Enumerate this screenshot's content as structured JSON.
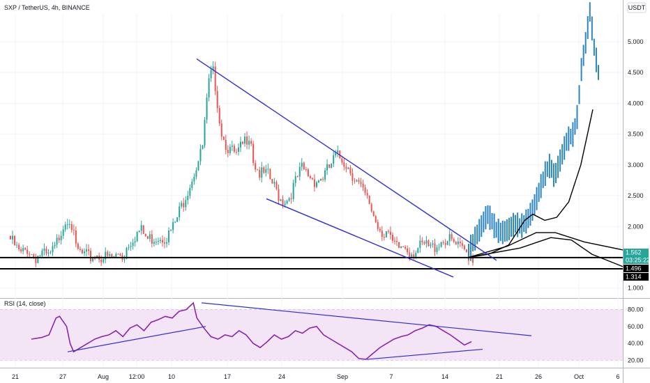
{
  "header": {
    "title": "SXP / TetherUS, 4h, BINANCE",
    "currency_badge": "USDT"
  },
  "rsi_header": {
    "title": "RSI (14, close)"
  },
  "colors": {
    "up": "#26a69a",
    "down": "#ef5350",
    "projection": "#2e86c1",
    "trendline": "#2f2fd6",
    "rsi_line": "#8e24aa",
    "rsi_band": "#f3e5f5",
    "ma": "#000000",
    "price_badge": "#26a69a",
    "level_badge": "#000000"
  },
  "price_labels": {
    "current": "1.562",
    "countdown": "03:25:22",
    "level1": "1.496",
    "level2": "1.314"
  },
  "chart_data": [
    {
      "type": "candlestick",
      "title": "SXP / TetherUS, 4h, BINANCE",
      "y_ticks": [
        1.0,
        1.5,
        2.0,
        2.5,
        3.0,
        3.5,
        4.0,
        4.5,
        5.0
      ],
      "y_tick_labels": [
        "1.000",
        "1.500",
        "2.000",
        "2.500",
        "3.000",
        "3.500",
        "4.000",
        "4.500",
        "5.000"
      ],
      "ylim": [
        0.85,
        5.45
      ],
      "x_ticks": [
        "21",
        "27",
        "Aug",
        "12:00",
        "10",
        "17",
        "24",
        "Sep",
        "7",
        "14",
        "21",
        "26",
        "Oct",
        "6"
      ],
      "grid": true,
      "path_points": [
        [
          0,
          1.85
        ],
        [
          3,
          1.6
        ],
        [
          5,
          1.7
        ],
        [
          7,
          1.55
        ],
        [
          9,
          1.62
        ],
        [
          11,
          1.55
        ],
        [
          13,
          1.7
        ],
        [
          15,
          2.05
        ],
        [
          17,
          2.25
        ],
        [
          18,
          2.05
        ],
        [
          19,
          1.7
        ],
        [
          21,
          1.6
        ],
        [
          23,
          1.55
        ],
        [
          25,
          1.6
        ],
        [
          28,
          1.55
        ],
        [
          30,
          1.55
        ],
        [
          32,
          1.62
        ],
        [
          33,
          1.55
        ],
        [
          34,
          1.75
        ],
        [
          36,
          1.9
        ],
        [
          38,
          2.0
        ],
        [
          40,
          1.85
        ],
        [
          43,
          1.9
        ],
        [
          46,
          1.9
        ],
        [
          48,
          2.1
        ],
        [
          50,
          2.4
        ],
        [
          52,
          2.7
        ],
        [
          54,
          3.0
        ],
        [
          56,
          3.3
        ],
        [
          57,
          3.9
        ],
        [
          58,
          4.4
        ],
        [
          59,
          4.6
        ],
        [
          60,
          4.3
        ],
        [
          61,
          3.8
        ],
        [
          62,
          3.5
        ],
        [
          64,
          3.3
        ],
        [
          66,
          3.2
        ],
        [
          68,
          3.4
        ],
        [
          70,
          3.6
        ],
        [
          71,
          3.1
        ],
        [
          73,
          2.9
        ],
        [
          75,
          2.9
        ],
        [
          77,
          2.7
        ],
        [
          79,
          2.5
        ],
        [
          81,
          2.5
        ],
        [
          83,
          2.75
        ],
        [
          85,
          3.0
        ],
        [
          87,
          2.9
        ],
        [
          89,
          2.8
        ],
        [
          91,
          2.85
        ],
        [
          93,
          3.0
        ],
        [
          95,
          3.2
        ],
        [
          97,
          3.15
        ],
        [
          99,
          3.0
        ],
        [
          101,
          2.8
        ],
        [
          103,
          2.6
        ],
        [
          105,
          2.4
        ],
        [
          107,
          2.1
        ],
        [
          109,
          1.95
        ],
        [
          110,
          2.0
        ],
        [
          111,
          1.8
        ],
        [
          113,
          1.7
        ],
        [
          115,
          1.75
        ],
        [
          117,
          1.65
        ],
        [
          119,
          1.7
        ],
        [
          121,
          1.75
        ],
        [
          123,
          1.7
        ],
        [
          125,
          1.8
        ],
        [
          127,
          1.85
        ],
        [
          129,
          1.8
        ],
        [
          131,
          1.7
        ],
        [
          133,
          1.65
        ],
        [
          135,
          1.55
        ]
      ],
      "path_x_range": [
        0,
        135
      ],
      "projection_points": [
        [
          0,
          1.6
        ],
        [
          3,
          1.8
        ],
        [
          6,
          2.0
        ],
        [
          9,
          2.2
        ],
        [
          11,
          2.1
        ],
        [
          13,
          1.95
        ],
        [
          16,
          1.9
        ],
        [
          19,
          1.95
        ],
        [
          22,
          2.05
        ],
        [
          25,
          2.0
        ],
        [
          28,
          2.1
        ],
        [
          31,
          2.3
        ],
        [
          34,
          2.6
        ],
        [
          37,
          2.9
        ],
        [
          39,
          3.0
        ],
        [
          41,
          2.8
        ],
        [
          44,
          3.1
        ],
        [
          47,
          3.4
        ],
        [
          50,
          3.5
        ],
        [
          52,
          3.8
        ],
        [
          53,
          4.2
        ],
        [
          54,
          4.6
        ],
        [
          56,
          5.0
        ],
        [
          58,
          5.5
        ],
        [
          60,
          4.9
        ],
        [
          62,
          4.5
        ]
      ],
      "projection_x_range": [
        0,
        62
      ],
      "moving_averages": [
        [
          [
            0,
            1.5
          ],
          [
            10,
            1.55
          ],
          [
            20,
            1.7
          ],
          [
            28,
            2.1
          ],
          [
            32,
            2.2
          ],
          [
            38,
            2.1
          ],
          [
            44,
            2.15
          ],
          [
            50,
            2.4
          ],
          [
            56,
            3.0
          ],
          [
            60,
            3.6
          ],
          [
            62,
            3.9
          ]
        ],
        [
          [
            0,
            1.5
          ],
          [
            20,
            1.68
          ],
          [
            35,
            1.9
          ],
          [
            45,
            1.9
          ],
          [
            60,
            1.75
          ],
          [
            80,
            1.62
          ]
        ],
        [
          [
            0,
            1.5
          ],
          [
            25,
            1.65
          ],
          [
            40,
            1.82
          ],
          [
            50,
            1.78
          ],
          [
            60,
            1.55
          ],
          [
            75,
            1.35
          ]
        ]
      ],
      "horizontal_levels": [
        1.496,
        1.314
      ],
      "trendlines": [
        {
          "from": [
            4.72,
            0
          ],
          "to": [
            1.45,
            1
          ]
        },
        {
          "from": [
            2.45,
            0
          ],
          "to": [
            1.18,
            1
          ]
        }
      ]
    },
    {
      "type": "line",
      "title": "RSI (14, close)",
      "y_ticks": [
        20,
        40,
        60,
        80
      ],
      "y_tick_labels": [
        "20.00",
        "40.00",
        "60.00",
        "80.00"
      ],
      "ylim": [
        12,
        92
      ],
      "band": [
        20,
        80
      ],
      "rsi_points": [
        [
          0,
          45
        ],
        [
          3,
          47
        ],
        [
          5,
          50
        ],
        [
          7,
          70
        ],
        [
          8,
          72
        ],
        [
          10,
          60
        ],
        [
          11,
          40
        ],
        [
          12,
          30
        ],
        [
          14,
          35
        ],
        [
          16,
          40
        ],
        [
          18,
          45
        ],
        [
          20,
          48
        ],
        [
          22,
          50
        ],
        [
          24,
          55
        ],
        [
          26,
          48
        ],
        [
          28,
          58
        ],
        [
          30,
          62
        ],
        [
          32,
          55
        ],
        [
          34,
          65
        ],
        [
          36,
          68
        ],
        [
          38,
          72
        ],
        [
          40,
          70
        ],
        [
          42,
          78
        ],
        [
          44,
          80
        ],
        [
          46,
          88
        ],
        [
          47,
          70
        ],
        [
          49,
          58
        ],
        [
          51,
          48
        ],
        [
          53,
          45
        ],
        [
          55,
          50
        ],
        [
          57,
          48
        ],
        [
          59,
          55
        ],
        [
          61,
          50
        ],
        [
          63,
          40
        ],
        [
          65,
          35
        ],
        [
          67,
          42
        ],
        [
          69,
          50
        ],
        [
          71,
          45
        ],
        [
          73,
          48
        ],
        [
          75,
          55
        ],
        [
          77,
          52
        ],
        [
          79,
          58
        ],
        [
          81,
          60
        ],
        [
          83,
          50
        ],
        [
          85,
          45
        ],
        [
          87,
          40
        ],
        [
          89,
          35
        ],
        [
          91,
          30
        ],
        [
          93,
          22
        ],
        [
          95,
          21
        ],
        [
          97,
          28
        ],
        [
          99,
          35
        ],
        [
          101,
          40
        ],
        [
          103,
          45
        ],
        [
          105,
          48
        ],
        [
          107,
          50
        ],
        [
          109,
          55
        ],
        [
          111,
          58
        ],
        [
          113,
          62
        ],
        [
          115,
          60
        ],
        [
          117,
          55
        ],
        [
          119,
          50
        ],
        [
          121,
          44
        ],
        [
          123,
          38
        ],
        [
          125,
          42
        ]
      ],
      "rsi_x_range": [
        0,
        125
      ],
      "trendlines": [
        {
          "from": [
            88,
            0
          ],
          "to": [
            49,
            1
          ]
        },
        {
          "from": [
            30,
            0
          ],
          "to": [
            60,
            1
          ]
        },
        {
          "from": [
            21,
            0
          ],
          "to": [
            33,
            1
          ]
        }
      ]
    }
  ]
}
